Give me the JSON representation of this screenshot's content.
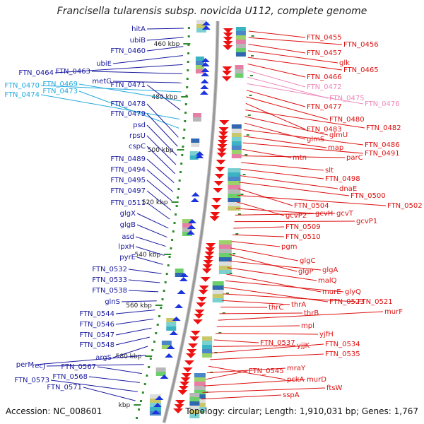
{
  "title": "Francisella tularensis subsp. novicida U112, complete genome",
  "footer": {
    "accession": "Accession: NC_008601",
    "summary": "Topology: circular; Length: 1,910,031 bp; Genes: 1,767"
  },
  "colors": {
    "left_label": "#1a1aa0",
    "left_label_cyan": "#22aadd",
    "right_label": "#dd1111",
    "right_label_pink": "#ee88bb",
    "backbone": "#999999",
    "tick": "#2e8b2e"
  },
  "ruler_marks": [
    "460 kbp",
    "480 kbp",
    "500 kbp",
    "520 kbp",
    "540 kbp",
    "560 kbp",
    "580 kbp",
    "kbp"
  ],
  "left_labels": [
    {
      "text": "hitA",
      "cyan": false
    },
    {
      "text": "ubiB",
      "cyan": false
    },
    {
      "text": "FTN_0460",
      "cyan": false
    },
    {
      "text": "ubiE",
      "cyan": false
    },
    {
      "text": "FTN_0464",
      "cyan": false
    },
    {
      "text": "FTN_0463",
      "cyan": false
    },
    {
      "text": "metG",
      "cyan": false
    },
    {
      "text": "FTN_0470",
      "cyan": true
    },
    {
      "text": "FTN_0469",
      "cyan": true
    },
    {
      "text": "FTN_0471",
      "cyan": false
    },
    {
      "text": "FTN_0474",
      "cyan": true
    },
    {
      "text": "FTN_0473",
      "cyan": true
    },
    {
      "text": "FTN_0478",
      "cyan": false
    },
    {
      "text": "FTN_0479",
      "cyan": false
    },
    {
      "text": "psd",
      "cyan": false
    },
    {
      "text": "rpsU",
      "cyan": false
    },
    {
      "text": "cspC",
      "cyan": false
    },
    {
      "text": "FTN_0489",
      "cyan": false
    },
    {
      "text": "FTN_0494",
      "cyan": false
    },
    {
      "text": "FTN_0495",
      "cyan": false
    },
    {
      "text": "FTN_0497",
      "cyan": false
    },
    {
      "text": "FTN_0511",
      "cyan": false
    },
    {
      "text": "glgX",
      "cyan": false
    },
    {
      "text": "glgB",
      "cyan": false
    },
    {
      "text": "asd",
      "cyan": false
    },
    {
      "text": "lpxH",
      "cyan": false
    },
    {
      "text": "pyrE",
      "cyan": false
    },
    {
      "text": "FTN_0532",
      "cyan": false
    },
    {
      "text": "FTN_0533",
      "cyan": false
    },
    {
      "text": "FTN_0538",
      "cyan": false
    },
    {
      "text": "glnS",
      "cyan": false
    },
    {
      "text": "FTN_0544",
      "cyan": false
    },
    {
      "text": "FTN_0546",
      "cyan": false
    },
    {
      "text": "FTN_0547",
      "cyan": false
    },
    {
      "text": "FTN_0548",
      "cyan": false
    },
    {
      "text": "argS",
      "cyan": false
    },
    {
      "text": "perM",
      "cyan": false
    },
    {
      "text": "recJ",
      "cyan": false
    },
    {
      "text": "FTN_0567",
      "cyan": false
    },
    {
      "text": "FTN_0568",
      "cyan": false
    },
    {
      "text": "FTN_0573",
      "cyan": false
    },
    {
      "text": "FTN_0571",
      "cyan": false
    }
  ],
  "right_labels": [
    {
      "text": "FTN_0455",
      "pink": false
    },
    {
      "text": "FTN_0456",
      "pink": false
    },
    {
      "text": "FTN_0457",
      "pink": false
    },
    {
      "text": "glk",
      "pink": false
    },
    {
      "text": "FTN_0465",
      "pink": false
    },
    {
      "text": "FTN_0466",
      "pink": false
    },
    {
      "text": "FTN_0472",
      "pink": true
    },
    {
      "text": "FTN_0475",
      "pink": true
    },
    {
      "text": "FTN_0476",
      "pink": true
    },
    {
      "text": "FTN_0477",
      "pink": false
    },
    {
      "text": "FTN_0480",
      "pink": false
    },
    {
      "text": "FTN_0483",
      "pink": false
    },
    {
      "text": "FTN_0482",
      "pink": false
    },
    {
      "text": "glmU",
      "pink": false
    },
    {
      "text": "glmS",
      "pink": false
    },
    {
      "text": "FTN_0486",
      "pink": false
    },
    {
      "text": "map",
      "pink": false
    },
    {
      "text": "FTN_0491",
      "pink": false
    },
    {
      "text": "mtn",
      "pink": false
    },
    {
      "text": "parC",
      "pink": false
    },
    {
      "text": "slt",
      "pink": false
    },
    {
      "text": "FTN_0498",
      "pink": false
    },
    {
      "text": "dnaE",
      "pink": false
    },
    {
      "text": "FTN_0500",
      "pink": false
    },
    {
      "text": "FTN_0504",
      "pink": false
    },
    {
      "text": "FTN_0502",
      "pink": false
    },
    {
      "text": "gcvP2",
      "pink": false
    },
    {
      "text": "gcvH",
      "pink": false
    },
    {
      "text": "gcvT",
      "pink": false
    },
    {
      "text": "gcvP1",
      "pink": false
    },
    {
      "text": "FTN_0509",
      "pink": false
    },
    {
      "text": "FTN_0510",
      "pink": false
    },
    {
      "text": "pgm",
      "pink": false
    },
    {
      "text": "glgC",
      "pink": false
    },
    {
      "text": "glgP",
      "pink": false
    },
    {
      "text": "glgA",
      "pink": false
    },
    {
      "text": "malQ",
      "pink": false
    },
    {
      "text": "murE",
      "pink": false
    },
    {
      "text": "glyQ",
      "pink": false
    },
    {
      "text": "FTN_0523",
      "pink": false
    },
    {
      "text": "FTN_0521",
      "pink": false
    },
    {
      "text": "thrA",
      "pink": false
    },
    {
      "text": "thrC",
      "pink": false
    },
    {
      "text": "thrB",
      "pink": false
    },
    {
      "text": "murF",
      "pink": false
    },
    {
      "text": "mpl",
      "pink": false
    },
    {
      "text": "yjfH",
      "pink": false
    },
    {
      "text": "FTN_0537",
      "pink": false
    },
    {
      "text": "yjjK",
      "pink": false
    },
    {
      "text": "FTN_0534",
      "pink": false
    },
    {
      "text": "FTN_0535",
      "pink": false
    },
    {
      "text": "pckA",
      "pink": false
    },
    {
      "text": "mraY",
      "pink": false
    },
    {
      "text": "FTN_0545",
      "pink": false
    },
    {
      "text": "murD",
      "pink": false
    },
    {
      "text": "ftsW",
      "pink": false
    },
    {
      "text": "sspA",
      "pink": false
    }
  ]
}
